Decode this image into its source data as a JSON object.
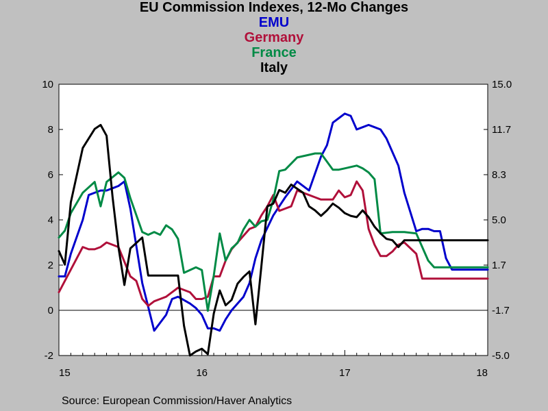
{
  "chart_data": {
    "type": "line",
    "title": "EU Commission Indexes, 12-Mo Changes",
    "subtitles": [
      {
        "text": "EMU",
        "color": "#0000cc"
      },
      {
        "text": "Germany",
        "color": "#b0103a"
      },
      {
        "text": "France",
        "color": "#008a45"
      },
      {
        "text": "Italy",
        "color": "#000000"
      }
    ],
    "source": "Source:  European Commission/Haver Analytics",
    "x_ticks": [
      "15",
      "16",
      "17",
      "18"
    ],
    "xlim": [
      0,
      36
    ],
    "left_axis": {
      "ylim": [
        -2,
        10
      ],
      "ticks": [
        "-2",
        "0",
        "2",
        "4",
        "6",
        "8",
        "10"
      ]
    },
    "right_axis": {
      "ylim": [
        -5,
        15
      ],
      "ticks": [
        "-5.0",
        "-1.7",
        "1.7",
        "5.0",
        "8.3",
        "11.7",
        "15.0"
      ]
    },
    "zero_line": 0,
    "series": [
      {
        "name": "EMU",
        "axis": "left",
        "color": "#0000cc",
        "x": [
          0,
          0.5,
          1,
          2,
          2.5,
          3,
          3.5,
          4,
          4.5,
          5,
          5.5,
          6,
          7,
          8,
          9,
          9.5,
          10,
          11,
          11.5,
          12,
          12.5,
          13,
          13.5,
          14,
          14.5,
          15,
          15.5,
          16,
          16.5,
          17,
          18,
          18.5,
          19,
          20,
          21,
          22,
          22.5,
          23,
          23.5,
          24,
          24.5,
          25,
          25.5,
          26,
          26.5,
          27,
          27.5,
          28,
          28.5,
          29,
          30,
          30.5,
          31,
          31.5,
          32,
          32.5,
          33,
          33.5,
          34,
          34.5,
          35,
          35.5,
          36
        ],
        "y": [
          1.5,
          1.5,
          2.5,
          4.0,
          5.1,
          5.2,
          5.3,
          5.3,
          5.4,
          5.5,
          5.7,
          4.5,
          1.2,
          -0.9,
          -0.2,
          0.5,
          0.6,
          0.3,
          0.1,
          -0.2,
          -0.8,
          -0.8,
          -0.9,
          -0.4,
          0.0,
          0.3,
          0.6,
          1.2,
          2.3,
          3.1,
          4.2,
          4.6,
          5.0,
          5.7,
          5.3,
          6.8,
          7.3,
          8.3,
          8.5,
          8.7,
          8.6,
          8.0,
          8.1,
          8.2,
          8.1,
          8.0,
          7.6,
          7.0,
          6.4,
          5.2,
          3.5,
          3.6,
          3.6,
          3.5,
          3.5,
          2.3,
          1.8,
          1.8,
          1.8,
          1.8,
          1.8,
          1.8,
          1.8
        ]
      },
      {
        "name": "Germany",
        "axis": "left",
        "color": "#b0103a",
        "x": [
          0,
          1,
          1.5,
          2,
          2.5,
          3,
          3.5,
          4,
          5,
          6,
          6.5,
          7,
          7.5,
          8,
          8.5,
          9,
          9.5,
          10,
          11,
          11.5,
          12,
          12.5,
          13,
          13.5,
          14,
          14.5,
          15,
          15.5,
          16,
          16.5,
          17,
          17.5,
          18,
          18.5,
          19,
          19.5,
          20,
          20.5,
          21,
          21.5,
          22,
          23,
          23.5,
          24,
          24.5,
          25,
          25.5,
          26,
          26.5,
          27,
          27.5,
          28,
          28.5,
          29,
          30,
          30.5,
          31,
          31.5,
          32,
          32.5,
          33,
          33.5,
          34,
          34.5,
          35,
          35.5,
          36
        ],
        "y": [
          0.8,
          1.8,
          2.3,
          2.8,
          2.7,
          2.7,
          2.8,
          3.0,
          2.8,
          1.5,
          1.3,
          0.5,
          0.2,
          0.4,
          0.5,
          0.6,
          0.8,
          1.0,
          0.8,
          0.5,
          0.5,
          0.6,
          1.5,
          1.5,
          2.2,
          2.7,
          3.0,
          3.3,
          3.6,
          3.7,
          4.2,
          4.6,
          5.1,
          4.4,
          4.5,
          4.6,
          5.3,
          5.2,
          5.1,
          5.0,
          4.9,
          4.9,
          5.3,
          5.0,
          5.1,
          5.7,
          5.3,
          3.6,
          2.9,
          2.4,
          2.4,
          2.6,
          2.9,
          3.0,
          2.5,
          1.4,
          1.4,
          1.4,
          1.4,
          1.4,
          1.4,
          1.4,
          1.4,
          1.4,
          1.4,
          1.4,
          1.4
        ]
      },
      {
        "name": "France",
        "axis": "right",
        "color": "#008a45",
        "x": [
          0,
          0.5,
          1,
          2,
          3,
          3.5,
          4,
          5,
          5.5,
          6,
          7,
          7.5,
          8,
          8.5,
          9,
          9.5,
          10,
          10.5,
          11,
          11.5,
          12,
          12.5,
          13,
          13.5,
          14,
          14.5,
          15,
          15.5,
          16,
          16.5,
          17,
          17.5,
          18,
          18.5,
          19,
          20,
          21,
          21.5,
          22,
          23,
          23.5,
          24,
          24.5,
          25,
          25.5,
          26,
          26.5,
          27,
          28,
          28.5,
          29,
          30,
          30.5,
          31,
          31.5,
          32,
          32.5,
          33,
          33.5,
          34,
          34.5,
          35,
          35.5,
          36
        ],
        "y": [
          3.7,
          4.2,
          5.5,
          7.0,
          7.8,
          6.0,
          7.8,
          8.5,
          8.1,
          6.6,
          4.1,
          3.9,
          4.1,
          3.9,
          4.6,
          4.3,
          3.6,
          1.1,
          1.3,
          1.5,
          1.3,
          -1.7,
          0.9,
          4.0,
          2.0,
          2.9,
          3.3,
          4.3,
          5.0,
          4.5,
          4.9,
          5.0,
          6.5,
          8.6,
          8.7,
          9.6,
          9.8,
          9.9,
          9.9,
          8.7,
          8.7,
          8.8,
          8.9,
          9.0,
          8.8,
          8.5,
          8.0,
          4.0,
          4.1,
          4.1,
          4.1,
          4.0,
          3.0,
          2.0,
          1.5,
          1.5,
          1.5,
          1.5,
          1.5,
          1.5,
          1.5,
          1.5,
          1.5,
          1.5
        ]
      },
      {
        "name": "Italy",
        "axis": "right",
        "color": "#000000",
        "x": [
          0,
          0.5,
          1,
          2,
          3,
          3.5,
          4,
          4.5,
          5,
          5.5,
          6,
          7,
          7.5,
          8,
          8.5,
          9,
          9.5,
          10,
          10.5,
          11,
          11.5,
          12,
          12.5,
          13,
          13.5,
          14,
          14.5,
          15,
          15.5,
          16,
          16.5,
          17,
          17.5,
          18,
          18.5,
          19,
          19.5,
          20,
          20.5,
          21,
          21.5,
          22,
          22.5,
          23,
          23.5,
          24,
          24.5,
          25,
          25.5,
          26,
          26.5,
          27,
          27.5,
          28,
          28.5,
          29,
          30,
          30.5,
          31,
          31.5,
          32,
          32.5,
          33,
          33.5,
          34,
          34.5,
          35,
          35.5,
          36
        ],
        "y": [
          2.7,
          1.7,
          6.3,
          10.3,
          11.7,
          12.0,
          11.2,
          6.7,
          3.0,
          0.2,
          2.9,
          3.7,
          0.9,
          0.9,
          0.9,
          0.9,
          0.9,
          0.9,
          -2.8,
          -5.0,
          -4.7,
          -4.5,
          -4.9,
          -1.9,
          -0.2,
          -1.3,
          -0.9,
          0.3,
          0.8,
          1.2,
          -2.7,
          1.6,
          6.0,
          6.2,
          7.2,
          7.0,
          7.6,
          7.3,
          7.0,
          6.0,
          5.7,
          5.3,
          5.7,
          6.2,
          5.9,
          5.5,
          5.3,
          5.2,
          5.7,
          5.2,
          4.5,
          4.0,
          3.6,
          3.5,
          3.0,
          3.5,
          3.5,
          3.5,
          3.5,
          3.5,
          3.5,
          3.5,
          3.5,
          3.5,
          3.5,
          3.5,
          3.5,
          3.5,
          3.5
        ]
      }
    ]
  }
}
